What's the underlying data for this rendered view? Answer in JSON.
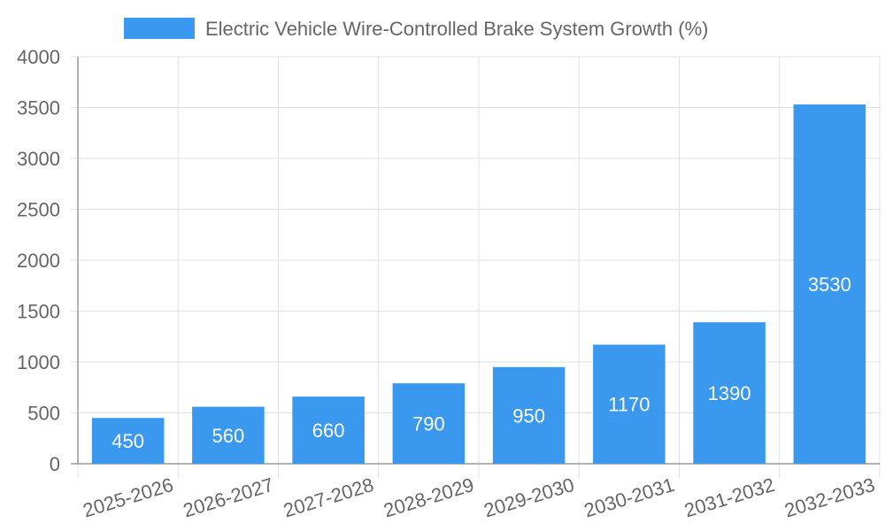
{
  "chart_data": {
    "type": "bar",
    "title": "",
    "legend": {
      "label": "Electric Vehicle Wire-Controlled Brake System Growth (%)",
      "placement": "top-center"
    },
    "categories": [
      "2025-2026",
      "2026-2027",
      "2027-2028",
      "2028-2029",
      "2029-2030",
      "2030-2031",
      "2031-2032",
      "2032-2033"
    ],
    "series": [
      {
        "name": "Electric Vehicle Wire-Controlled Brake System Growth (%)",
        "values": [
          450,
          560,
          660,
          790,
          950,
          1170,
          1390,
          3530
        ],
        "color": "#3a99ef"
      }
    ],
    "xlabel": "",
    "ylabel": "",
    "ylim": [
      0,
      4000
    ],
    "yticks": [
      0,
      500,
      1000,
      1500,
      2000,
      2500,
      3000,
      3500,
      4000
    ],
    "grid": true,
    "data_labels": true
  }
}
